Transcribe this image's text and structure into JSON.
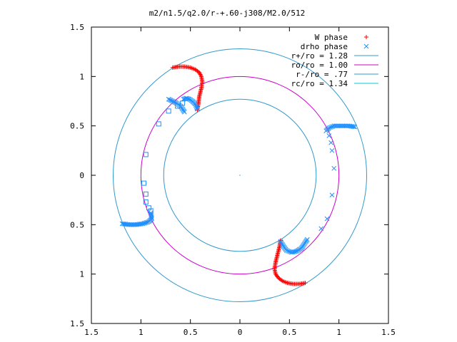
{
  "chart_data": {
    "type": "scatter",
    "title": "m2/n1.5/q2.0/r-+.60-j308/M2.0/512",
    "xlabel": "",
    "ylabel": "",
    "xlim": [
      -1.5,
      1.5
    ],
    "ylim": [
      -1.5,
      1.5
    ],
    "x_tick_values": [
      -1.5,
      -1,
      -0.5,
      0,
      0.5,
      1,
      1.5
    ],
    "x_tick_labels": [
      "1.5",
      "1",
      "0.5",
      "0",
      "0.5",
      "1",
      "1.5"
    ],
    "y_tick_values": [
      1.5,
      1,
      0.5,
      0,
      -0.5,
      -1,
      -1.5
    ],
    "y_tick_labels": [
      "1.5",
      "1",
      "0.5",
      "0",
      "0.5",
      "1",
      "1.5"
    ],
    "grid": false,
    "legend_position": "top-right",
    "legend": [
      {
        "label": "W phase",
        "marker": "+",
        "color": "#ff0000"
      },
      {
        "label": "drho phase",
        "marker": "x",
        "color": "#1f8fff"
      },
      {
        "label": "r+/ro = 1.28",
        "line": true,
        "color": "#3399cc"
      },
      {
        "label": "ro/ro = 1.00",
        "line": true,
        "color": "#cc00cc"
      },
      {
        "label": "r-/ro = .77",
        "line": true,
        "color": "#3399cc"
      },
      {
        "label": "rc/ro = 1.34",
        "line": true,
        "color": "#00cccc"
      }
    ],
    "circles": [
      {
        "name": "r+/ro",
        "r": 1.28,
        "color": "#3399cc"
      },
      {
        "name": "ro/ro",
        "r": 1.0,
        "color": "#cc00cc"
      },
      {
        "name": "r-/ro",
        "r": 0.77,
        "color": "#3399cc"
      }
    ],
    "series": [
      {
        "name": "W phase",
        "marker": "+",
        "color": "#ff0000",
        "groups": [
          {
            "points": [
              [
                -0.68,
                1.09
              ],
              [
                -0.62,
                1.1
              ],
              [
                -0.56,
                1.1
              ],
              [
                -0.5,
                1.09
              ],
              [
                -0.45,
                1.07
              ],
              [
                -0.41,
                1.04
              ],
              [
                -0.39,
                1.0
              ],
              [
                -0.38,
                0.95
              ],
              [
                -0.39,
                0.88
              ],
              [
                -0.41,
                0.8
              ],
              [
                -0.42,
                0.72
              ],
              [
                -0.43,
                0.66
              ]
            ]
          },
          {
            "points": [
              [
                0.66,
                -1.09
              ],
              [
                0.6,
                -1.1
              ],
              [
                0.54,
                -1.1
              ],
              [
                0.48,
                -1.09
              ],
              [
                0.43,
                -1.07
              ],
              [
                0.39,
                -1.04
              ],
              [
                0.36,
                -1.0
              ],
              [
                0.35,
                -0.95
              ],
              [
                0.36,
                -0.88
              ],
              [
                0.38,
                -0.8
              ],
              [
                0.4,
                -0.72
              ],
              [
                0.41,
                -0.66
              ]
            ]
          }
        ]
      },
      {
        "name": "drho phase",
        "marker": "x",
        "color": "#1f8fff",
        "groups": [
          {
            "points": [
              [
                -0.43,
                0.67
              ],
              [
                -0.45,
                0.72
              ],
              [
                -0.48,
                0.75
              ],
              [
                -0.51,
                0.77
              ],
              [
                -0.54,
                0.78
              ],
              [
                -0.57,
                0.77
              ]
            ]
          },
          {
            "points": [
              [
                -0.56,
                0.64
              ],
              [
                -0.6,
                0.7
              ],
              [
                -0.64,
                0.73
              ],
              [
                -0.68,
                0.75
              ],
              [
                -0.72,
                0.77
              ]
            ]
          },
          {
            "points": [
              [
                0.87,
                0.45
              ],
              [
                0.9,
                0.48
              ],
              [
                0.95,
                0.5
              ],
              [
                1.0,
                0.5
              ],
              [
                1.05,
                0.5
              ],
              [
                1.1,
                0.5
              ],
              [
                1.16,
                0.49
              ],
              [
                0.9,
                0.4
              ],
              [
                0.92,
                0.33
              ],
              [
                0.93,
                0.25
              ],
              [
                0.95,
                0.07
              ],
              [
                0.93,
                -0.2
              ],
              [
                0.88,
                -0.44
              ],
              [
                0.82,
                -0.54
              ]
            ]
          },
          {
            "points": [
              [
                -1.19,
                -0.49
              ],
              [
                -1.12,
                -0.5
              ],
              [
                -1.05,
                -0.5
              ],
              [
                -0.98,
                -0.49
              ],
              [
                -0.92,
                -0.47
              ],
              [
                -0.89,
                -0.44
              ],
              [
                -0.9,
                -0.38
              ]
            ]
          },
          {
            "points": [
              [
                0.41,
                -0.67
              ],
              [
                0.44,
                -0.72
              ],
              [
                0.47,
                -0.76
              ],
              [
                0.52,
                -0.78
              ],
              [
                0.57,
                -0.77
              ],
              [
                0.62,
                -0.74
              ],
              [
                0.68,
                -0.65
              ]
            ]
          }
        ]
      },
      {
        "name": "squares",
        "marker": "square",
        "color": "#1f8fff",
        "groups": [
          {
            "points": [
              [
                -0.72,
                0.65
              ],
              [
                -0.82,
                0.52
              ],
              [
                -0.95,
                0.21
              ],
              [
                -0.97,
                -0.08
              ],
              [
                -0.95,
                -0.19
              ],
              [
                -0.95,
                -0.27
              ],
              [
                -0.92,
                -0.33
              ],
              [
                -0.9,
                -0.36
              ],
              [
                -0.63,
                0.7
              ],
              [
                -0.58,
                0.73
              ]
            ]
          }
        ]
      }
    ]
  }
}
